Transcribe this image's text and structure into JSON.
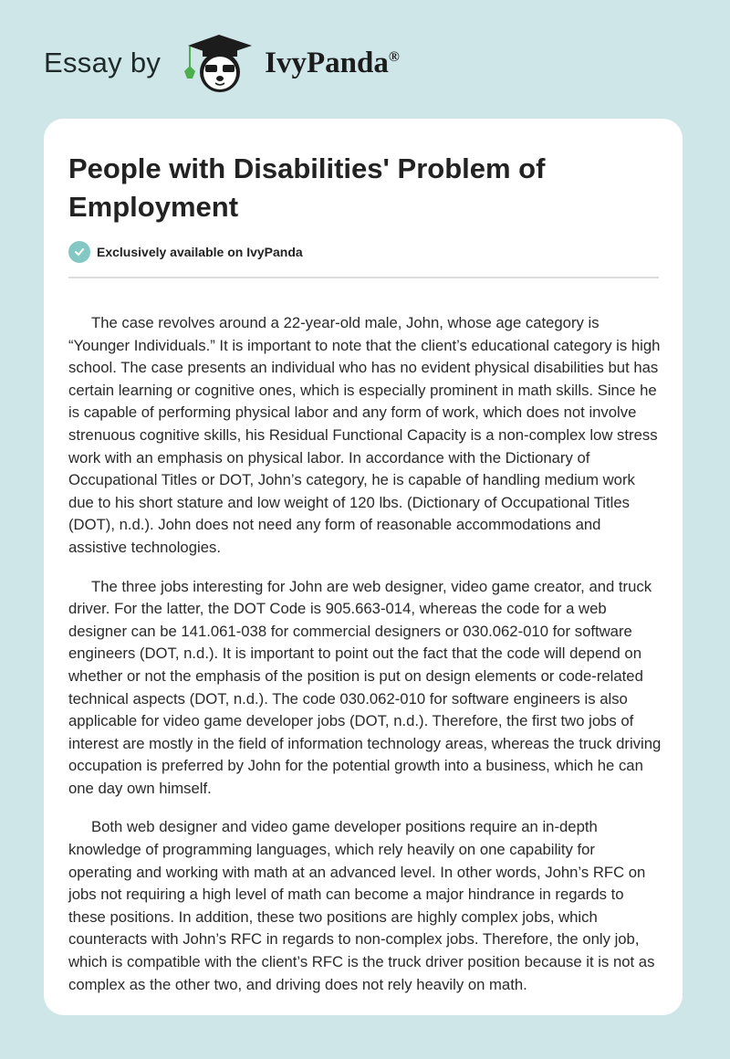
{
  "header": {
    "prefix": "Essay by",
    "brand": "IvyPanda",
    "registered": "®",
    "logo_icon": "panda-graduate-icon"
  },
  "colors": {
    "background": "#cfe6e8",
    "badge": "#84c8c3",
    "card": "#ffffff"
  },
  "article": {
    "title": "People with Disabilities' Problem of Employment",
    "badge": "Exclusively available on IvyPanda",
    "paragraphs": [
      "The case revolves around a 22-year-old male, John, whose age category is “Younger Individuals.” It is important to note that the client’s educational category is high school. The case presents an individual who has no evident physical disabilities but has certain learning or cognitive ones, which is especially prominent in math skills. Since he is capable of performing physical labor and any form of work, which does not involve strenuous cognitive skills, his Residual Functional Capacity is a non-complex low stress work with an emphasis on physical labor. In accordance with the Dictionary of Occupational Titles or DOT, John’s category, he is capable of handling medium work due to his short stature and low weight of 120 lbs. (Dictionary of Occupational Titles (DOT), n.d.). John does not need any form of reasonable accommodations and assistive technologies.",
      "The three jobs interesting for John are web designer, video game creator, and truck driver. For the latter, the DOT Code is 905.663-014, whereas the code for a web designer can be 141.061-038 for commercial designers or 030.062-010 for software engineers (DOT, n.d.). It is important to point out the fact that the code will depend on whether or not the emphasis of the position is put on design elements or code-related technical aspects (DOT, n.d.). The code 030.062-010 for software engineers is also applicable for video game developer jobs (DOT, n.d.). Therefore, the first two jobs of interest are mostly in the field of information technology areas, whereas the truck driving occupation is preferred by John for the potential growth into a business, which he can one day own himself.",
      "Both web designer and video game developer positions require an in-depth knowledge of programming languages, which rely heavily on one capability for operating and working with math at an advanced level. In other words, John’s RFC on jobs not requiring a high level of math can become a major hindrance in regards to these positions. In addition, these two positions are highly complex jobs, which counteracts with John’s RFC in regards to non-complex jobs. Therefore, the only job, which is compatible with the client’s RFC is the truck driver position because it is not as complex as the other two, and driving does not rely heavily on math."
    ]
  }
}
